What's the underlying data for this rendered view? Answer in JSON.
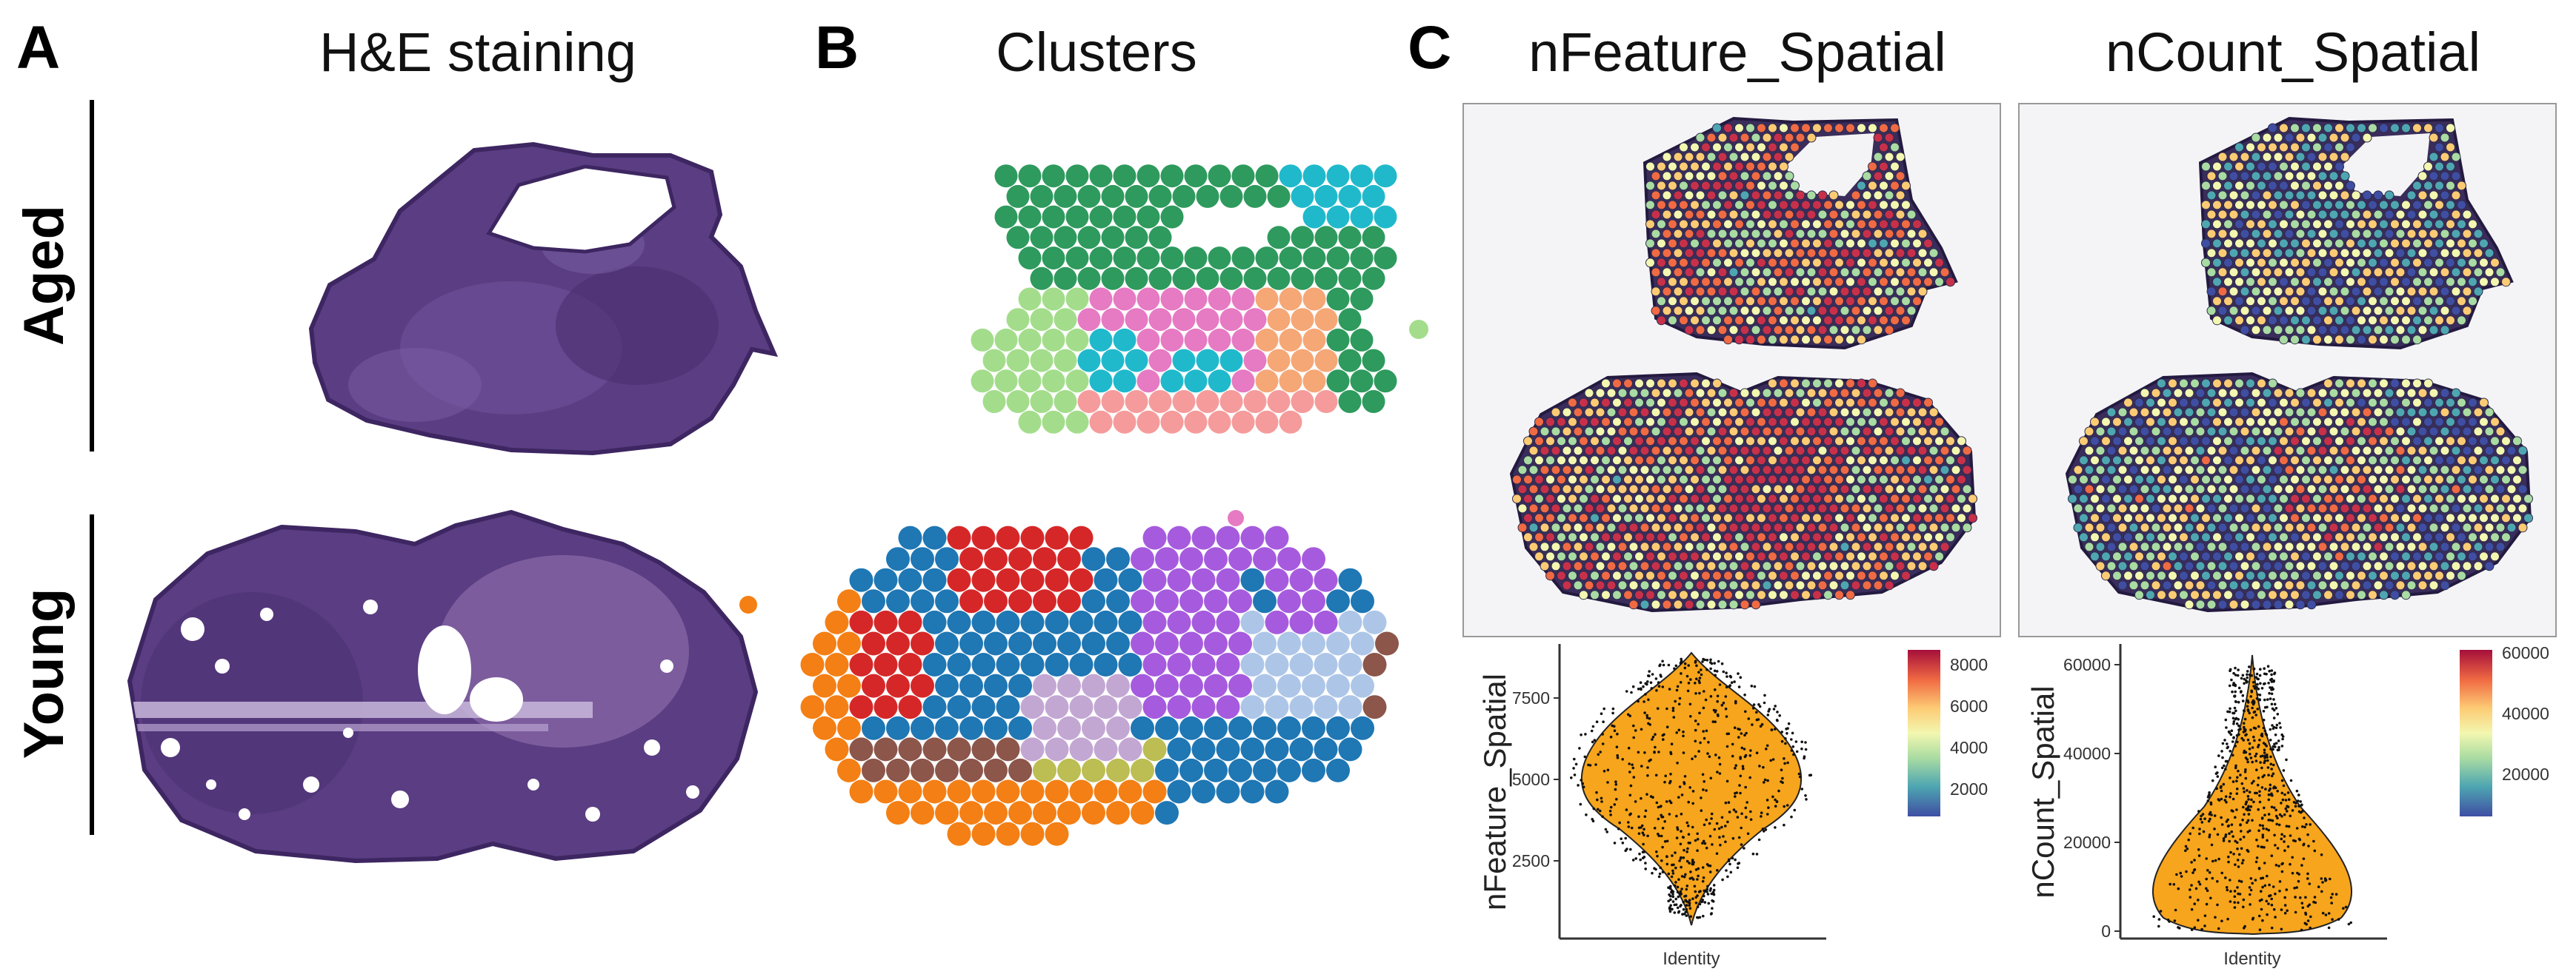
{
  "panels": {
    "a": {
      "label": "A",
      "title": "H&E staining"
    },
    "b": {
      "label": "B",
      "title": "Clusters"
    },
    "c": {
      "label": "C",
      "title_feature": "nFeature_Spatial",
      "title_count": "nCount_Spatial"
    }
  },
  "rows": {
    "top": "Aged",
    "bottom": "Young"
  },
  "colors": {
    "he_tissue": "#5a3d82",
    "he_tissue_dark": "#3d2661",
    "violin_fill": "#f7a51d",
    "spot_outline": "#2b2b4a",
    "cluster_palette": [
      "#2e9a5d",
      "#20b9cc",
      "#e67ac3",
      "#f5a776",
      "#a3dd8b",
      "#f59b9b",
      "#f47f14",
      "#d62728",
      "#1f77b4",
      "#a65bde",
      "#adc6e8",
      "#8c564b",
      "#c3a7d3",
      "#bcbd52",
      "#c49c94"
    ]
  },
  "violin_feature": {
    "ylabel": "nFeature_Spatial",
    "xlabel": "Identity",
    "yticks": [
      "2500",
      "5000",
      "7500"
    ],
    "colorbar_ticks": [
      "2000",
      "4000",
      "6000",
      "8000"
    ]
  },
  "violin_count": {
    "ylabel": "nCount_Spatial",
    "xlabel": "Identity",
    "yticks": [
      "0",
      "20000",
      "40000",
      "60000"
    ],
    "colorbar_ticks": [
      "20000",
      "40000",
      "60000"
    ]
  }
}
